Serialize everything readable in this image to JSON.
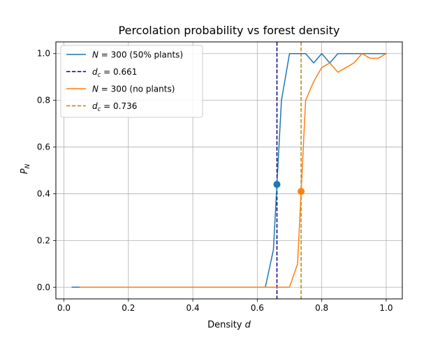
{
  "chart_data": {
    "type": "line",
    "title": "Percolation probability vs forest density",
    "xlabel": {
      "main": "Density ",
      "var": "d"
    },
    "ylabel": {
      "var": "P",
      "sub": "N"
    },
    "xlim": [
      -0.025,
      1.05
    ],
    "ylim": [
      -0.05,
      1.05
    ],
    "xticks": [
      0.0,
      0.2,
      0.4,
      0.6,
      0.8,
      1.0
    ],
    "xtick_labels": [
      "0.0",
      "0.2",
      "0.4",
      "0.6",
      "0.8",
      "1.0"
    ],
    "yticks": [
      0.0,
      0.2,
      0.4,
      0.6,
      0.8,
      1.0
    ],
    "ytick_labels": [
      "0.0",
      "0.2",
      "0.4",
      "0.6",
      "0.8",
      "1.0"
    ],
    "grid": true,
    "legend_position": "top-left",
    "series": [
      {
        "kind": "line",
        "legend": {
          "var": "N",
          "text": " = 300 (50% plants)"
        },
        "color": "#1f77b4",
        "style": "solid",
        "x": [
          0.025,
          0.05,
          0.075,
          0.1,
          0.125,
          0.15,
          0.175,
          0.2,
          0.225,
          0.25,
          0.275,
          0.3,
          0.325,
          0.35,
          0.375,
          0.4,
          0.425,
          0.45,
          0.475,
          0.5,
          0.525,
          0.55,
          0.575,
          0.6,
          0.625,
          0.65,
          0.675,
          0.7,
          0.725,
          0.75,
          0.775,
          0.8,
          0.825,
          0.85,
          0.875,
          0.9,
          0.925,
          0.95,
          0.975,
          1.0
        ],
        "y": [
          0,
          0,
          0,
          0,
          0,
          0,
          0,
          0,
          0,
          0,
          0,
          0,
          0,
          0,
          0,
          0,
          0,
          0,
          0,
          0,
          0,
          0,
          0,
          0,
          0,
          0.16,
          0.8,
          1.0,
          1.0,
          1.0,
          0.96,
          1.0,
          0.96,
          1.0,
          1.0,
          1.0,
          1.0,
          1.0,
          1.0,
          1.0
        ]
      },
      {
        "kind": "vline",
        "legend": {
          "var": "d",
          "sub": "c",
          "text": " = 0.661"
        },
        "color": "#000080",
        "style": "dashed",
        "x": 0.661
      },
      {
        "kind": "line",
        "legend": {
          "var": "N",
          "text": " = 300 (no plants)"
        },
        "color": "#ff7f0e",
        "style": "solid",
        "x": [
          0.05,
          0.075,
          0.1,
          0.125,
          0.15,
          0.175,
          0.2,
          0.225,
          0.25,
          0.275,
          0.3,
          0.325,
          0.35,
          0.375,
          0.4,
          0.425,
          0.45,
          0.475,
          0.5,
          0.525,
          0.55,
          0.575,
          0.6,
          0.625,
          0.65,
          0.675,
          0.7,
          0.725,
          0.75,
          0.775,
          0.8,
          0.825,
          0.85,
          0.875,
          0.9,
          0.925,
          0.95,
          0.975,
          1.0
        ],
        "y": [
          0,
          0,
          0,
          0,
          0,
          0,
          0,
          0,
          0,
          0,
          0,
          0,
          0,
          0,
          0,
          0,
          0,
          0,
          0,
          0,
          0,
          0,
          0,
          0,
          0,
          0,
          0,
          0.1,
          0.8,
          0.88,
          0.94,
          0.96,
          0.92,
          0.94,
          0.96,
          1.0,
          0.98,
          0.98,
          1.0
        ]
      },
      {
        "kind": "vline",
        "legend": {
          "var": "d",
          "sub": "c",
          "text": " = 0.736"
        },
        "color": "#b8860b",
        "style": "dashed",
        "x": 0.736
      }
    ],
    "markers": [
      {
        "x": 0.661,
        "y": 0.44,
        "color": "#1f77b4"
      },
      {
        "x": 0.736,
        "y": 0.41,
        "color": "#ff7f0e"
      }
    ]
  }
}
